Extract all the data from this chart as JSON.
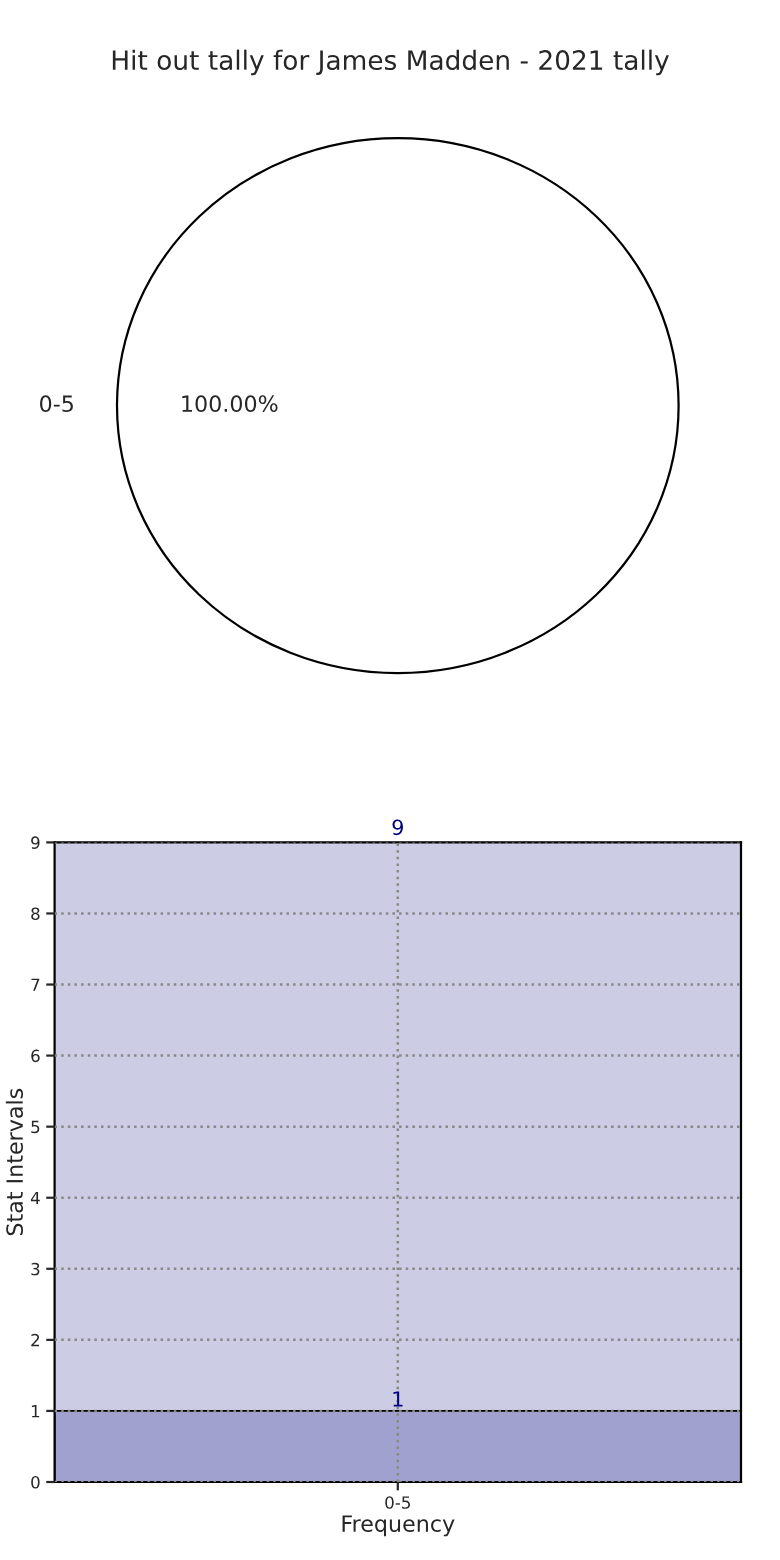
{
  "chart_data": [
    {
      "type": "pie",
      "title": "Hit out tally for James Madden - 2021 tally",
      "categories": [
        "0-5"
      ],
      "values": [
        100
      ],
      "colors": [
        "#ffffff"
      ],
      "value_labels": [
        "100.00%"
      ]
    },
    {
      "type": "bar",
      "xlabel": "Frequency",
      "ylabel": "Stat Intervals",
      "categories": [
        "0-5"
      ],
      "series": [
        {
          "color": "#a1a1cf",
          "values": [
            1
          ]
        }
      ],
      "ylim": [
        0,
        9
      ],
      "yticks": [
        0,
        1,
        2,
        3,
        4,
        5,
        6,
        7,
        8,
        9
      ],
      "grid": true,
      "data_labels": true,
      "annotations": [
        "9"
      ]
    }
  ]
}
